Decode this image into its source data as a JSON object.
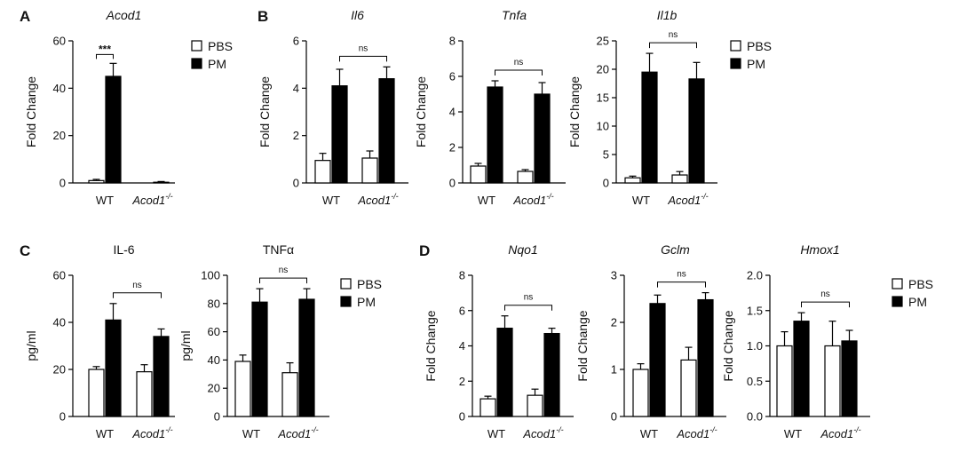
{
  "panel_letters": [
    "A",
    "B",
    "C",
    "D"
  ],
  "series_names": [
    "PBS",
    "PM"
  ],
  "x_categories": [
    "WT",
    "Acod1"
  ],
  "genotype_superscript": "-/-",
  "colors": {
    "PBS": "#ffffff",
    "PM": "#000000"
  },
  "chart_data": [
    {
      "type": "bar",
      "panel": "A",
      "title": "Acod1",
      "title_italic": true,
      "ylabel": "Fold Change",
      "ylim": [
        0,
        60
      ],
      "yticks": [
        "0",
        "20",
        "40",
        "60"
      ],
      "categories": [
        "WT",
        "Acod1"
      ],
      "series": [
        {
          "name": "PBS",
          "values": [
            1,
            0
          ],
          "errors": [
            0.5,
            0
          ]
        },
        {
          "name": "PM",
          "values": [
            45,
            0.3
          ],
          "errors": [
            5.5,
            0.3
          ]
        }
      ],
      "significance": {
        "label": "***",
        "type": "within",
        "group": 0
      },
      "legend": "right"
    },
    {
      "type": "bar",
      "panel": "B",
      "title": "Il6",
      "title_italic": true,
      "ylabel": "Fold Change",
      "ylim": [
        0,
        6
      ],
      "yticks": [
        "0",
        "2",
        "4",
        "6"
      ],
      "categories": [
        "WT",
        "Acod1"
      ],
      "series": [
        {
          "name": "PBS",
          "values": [
            0.95,
            1.05
          ],
          "errors": [
            0.3,
            0.3
          ]
        },
        {
          "name": "PM",
          "values": [
            4.1,
            4.4
          ],
          "errors": [
            0.7,
            0.5
          ]
        }
      ],
      "significance": {
        "label": "ns",
        "type": "between"
      }
    },
    {
      "type": "bar",
      "panel": "B",
      "title": "Tnfa",
      "title_italic": true,
      "ylabel": "Fold Change",
      "ylim": [
        0,
        8
      ],
      "yticks": [
        "0",
        "2",
        "4",
        "6",
        "8"
      ],
      "categories": [
        "WT",
        "Acod1"
      ],
      "series": [
        {
          "name": "PBS",
          "values": [
            0.95,
            0.65
          ],
          "errors": [
            0.15,
            0.1
          ]
        },
        {
          "name": "PM",
          "values": [
            5.4,
            5.0
          ],
          "errors": [
            0.35,
            0.65
          ]
        }
      ],
      "significance": {
        "label": "ns",
        "type": "between"
      }
    },
    {
      "type": "bar",
      "panel": "B",
      "title": "Il1b",
      "title_italic": true,
      "ylabel": "Fold Change",
      "ylim": [
        0,
        25
      ],
      "yticks": [
        "0",
        "5",
        "10",
        "15",
        "20",
        "25"
      ],
      "categories": [
        "WT",
        "Acod1"
      ],
      "series": [
        {
          "name": "PBS",
          "values": [
            0.9,
            1.4
          ],
          "errors": [
            0.3,
            0.6
          ]
        },
        {
          "name": "PM",
          "values": [
            19.5,
            18.3
          ],
          "errors": [
            3.3,
            2.9
          ]
        }
      ],
      "significance": {
        "label": "ns",
        "type": "between"
      },
      "legend": "right"
    },
    {
      "type": "bar",
      "panel": "C",
      "title": "IL-6",
      "title_italic": false,
      "ylabel": "pg/ml",
      "ylim": [
        0,
        60
      ],
      "yticks": [
        "0",
        "20",
        "40",
        "60"
      ],
      "categories": [
        "WT",
        "Acod1"
      ],
      "series": [
        {
          "name": "PBS",
          "values": [
            20,
            19
          ],
          "errors": [
            1.2,
            3
          ]
        },
        {
          "name": "PM",
          "values": [
            41,
            34
          ],
          "errors": [
            7,
            3.2
          ]
        }
      ],
      "significance": {
        "label": "ns",
        "type": "between"
      }
    },
    {
      "type": "bar",
      "panel": "C",
      "title": "TNFα",
      "title_italic": false,
      "ylabel": "pg/ml",
      "ylim": [
        0,
        100
      ],
      "yticks": [
        "0",
        "20",
        "40",
        "60",
        "80",
        "100"
      ],
      "categories": [
        "WT",
        "Acod1"
      ],
      "series": [
        {
          "name": "PBS",
          "values": [
            39,
            31
          ],
          "errors": [
            4.5,
            7
          ]
        },
        {
          "name": "PM",
          "values": [
            81,
            83
          ],
          "errors": [
            9.5,
            7.5
          ]
        }
      ],
      "significance": {
        "label": "ns",
        "type": "between"
      },
      "legend": "right"
    },
    {
      "type": "bar",
      "panel": "D",
      "title": "Nqo1",
      "title_italic": true,
      "ylabel": "Fold Change",
      "ylim": [
        0,
        8
      ],
      "yticks": [
        "0",
        "2",
        "4",
        "6",
        "8"
      ],
      "categories": [
        "WT",
        "Acod1"
      ],
      "series": [
        {
          "name": "PBS",
          "values": [
            1.0,
            1.2
          ],
          "errors": [
            0.15,
            0.35
          ]
        },
        {
          "name": "PM",
          "values": [
            5.0,
            4.7
          ],
          "errors": [
            0.7,
            0.3
          ]
        }
      ],
      "significance": {
        "label": "ns",
        "type": "between"
      }
    },
    {
      "type": "bar",
      "panel": "D",
      "title": "Gclm",
      "title_italic": true,
      "ylabel": "Fold Change",
      "ylim": [
        0,
        3
      ],
      "yticks": [
        "0",
        "1",
        "2",
        "3"
      ],
      "categories": [
        "WT",
        "Acod1"
      ],
      "series": [
        {
          "name": "PBS",
          "values": [
            1.0,
            1.2
          ],
          "errors": [
            0.12,
            0.27
          ]
        },
        {
          "name": "PM",
          "values": [
            2.4,
            2.48
          ],
          "errors": [
            0.18,
            0.15
          ]
        }
      ],
      "significance": {
        "label": "ns",
        "type": "between"
      }
    },
    {
      "type": "bar",
      "panel": "D",
      "title": "Hmox1",
      "title_italic": true,
      "ylabel": "Fold Change",
      "ylim": [
        0,
        2.0
      ],
      "yticks": [
        "0.0",
        "0.5",
        "1.0",
        "1.5",
        "2.0"
      ],
      "categories": [
        "WT",
        "Acod1"
      ],
      "series": [
        {
          "name": "PBS",
          "values": [
            1.0,
            1.0
          ],
          "errors": [
            0.2,
            0.35
          ]
        },
        {
          "name": "PM",
          "values": [
            1.35,
            1.07
          ],
          "errors": [
            0.12,
            0.15
          ]
        }
      ],
      "significance": {
        "label": "ns",
        "type": "between"
      },
      "legend": "right"
    }
  ]
}
